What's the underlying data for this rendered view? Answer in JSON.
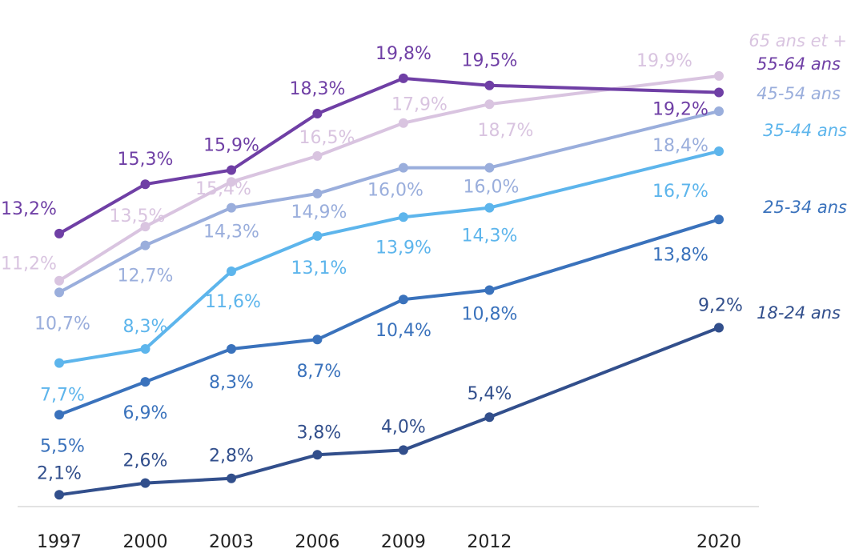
{
  "chart_data": {
    "type": "line",
    "title": "",
    "xlabel": "",
    "ylabel": "",
    "x": [
      1997,
      2000,
      2003,
      2006,
      2009,
      2012,
      2020
    ],
    "ylim": [
      0,
      22
    ],
    "grid": false,
    "legend": "right, inline labels at line ends",
    "series": [
      {
        "name": "65 ans et +",
        "color": "#d9c4e0",
        "values": [
          11.2,
          13.5,
          15.4,
          16.5,
          17.9,
          18.7,
          19.9
        ],
        "labels": [
          "11,2%",
          "13,5%",
          "15,4%",
          "16,5%",
          "17,9%",
          "18,7%",
          "19,9%"
        ]
      },
      {
        "name": "55-64 ans",
        "color": "#6f3fa5",
        "values": [
          13.2,
          15.3,
          15.9,
          18.3,
          19.8,
          19.5,
          19.2
        ],
        "labels": [
          "13,2%",
          "15,3%",
          "15,9%",
          "18,3%",
          "19,8%",
          "19,5%",
          "19,2%"
        ]
      },
      {
        "name": "45-54 ans",
        "color": "#9aaedc",
        "values": [
          10.7,
          12.7,
          14.3,
          14.9,
          16.0,
          16.0,
          18.4
        ],
        "labels": [
          "10,7%",
          "12,7%",
          "14,3%",
          "14,9%",
          "16,0%",
          "16,0%",
          "18,4%"
        ]
      },
      {
        "name": "35-44 ans",
        "color": "#5db5ec",
        "values": [
          7.7,
          8.3,
          11.6,
          13.1,
          13.9,
          14.3,
          16.7
        ],
        "labels": [
          "7,7%",
          "8,3%",
          "11,6%",
          "13,1%",
          "13,9%",
          "14,3%",
          "16,7%"
        ]
      },
      {
        "name": "25-34 ans",
        "color": "#3a72bc",
        "values": [
          5.5,
          6.9,
          8.3,
          8.7,
          10.4,
          10.8,
          13.8
        ],
        "labels": [
          "5,5%",
          "6,9%",
          "8,3%",
          "8,7%",
          "10,4%",
          "10,8%",
          "13,8%"
        ]
      },
      {
        "name": "18-24 ans",
        "color": "#324f8c",
        "values": [
          2.1,
          2.6,
          2.8,
          3.8,
          4.0,
          5.4,
          9.2
        ],
        "labels": [
          "2,1%",
          "2,6%",
          "2,8%",
          "3,8%",
          "4,0%",
          "5,4%",
          "9,2%"
        ]
      }
    ]
  }
}
